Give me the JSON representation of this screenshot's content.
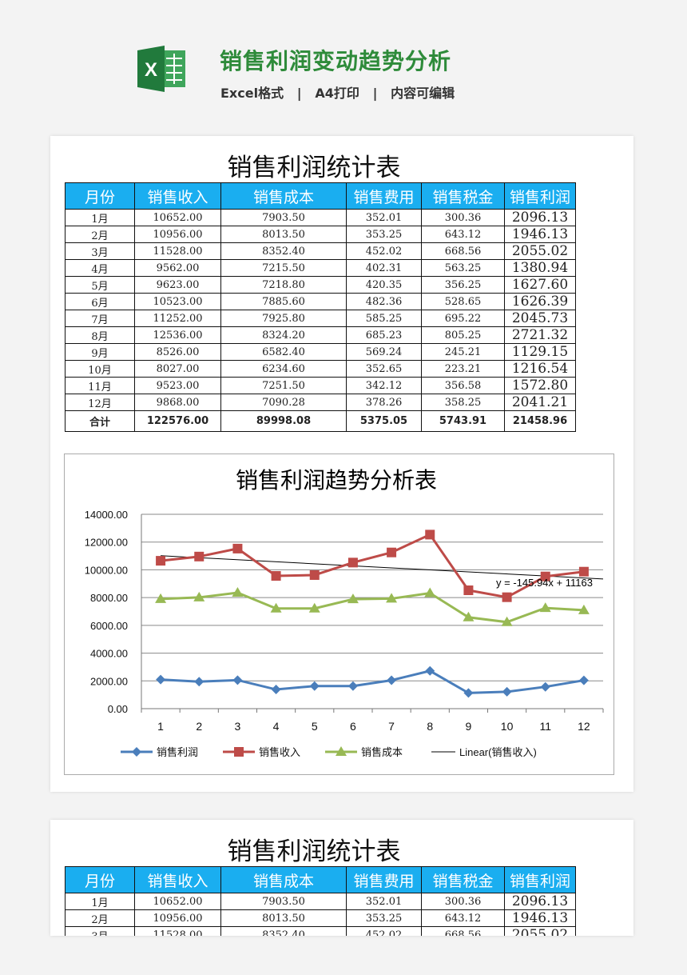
{
  "header": {
    "title": "销售利润变动趋势分析",
    "subtitle": "Excel格式   |   A4打印   |   内容可编辑",
    "logo_letter": "X"
  },
  "table": {
    "title": "销售利润统计表",
    "columns": [
      "月份",
      "销售收入",
      "销售成本",
      "销售费用",
      "销售税金",
      "销售利润"
    ],
    "rows": [
      [
        "1月",
        "10652.00",
        "7903.50",
        "352.01",
        "300.36",
        "2096.13"
      ],
      [
        "2月",
        "10956.00",
        "8013.50",
        "353.25",
        "643.12",
        "1946.13"
      ],
      [
        "3月",
        "11528.00",
        "8352.40",
        "452.02",
        "668.56",
        "2055.02"
      ],
      [
        "4月",
        "9562.00",
        "7215.50",
        "402.31",
        "563.25",
        "1380.94"
      ],
      [
        "5月",
        "9623.00",
        "7218.80",
        "420.35",
        "356.25",
        "1627.60"
      ],
      [
        "6月",
        "10523.00",
        "7885.60",
        "482.36",
        "528.65",
        "1626.39"
      ],
      [
        "7月",
        "11252.00",
        "7925.80",
        "585.25",
        "695.22",
        "2045.73"
      ],
      [
        "8月",
        "12536.00",
        "8324.20",
        "685.23",
        "805.25",
        "2721.32"
      ],
      [
        "9月",
        "8526.00",
        "6582.40",
        "569.24",
        "245.21",
        "1129.15"
      ],
      [
        "10月",
        "8027.00",
        "6234.60",
        "352.65",
        "223.21",
        "1216.54"
      ],
      [
        "11月",
        "9523.00",
        "7251.50",
        "342.12",
        "356.58",
        "1572.80"
      ],
      [
        "12月",
        "9868.00",
        "7090.28",
        "378.26",
        "358.25",
        "2041.21"
      ]
    ],
    "total": [
      "合计",
      "122576.00",
      "89998.08",
      "5375.05",
      "5743.91",
      "21458.96"
    ]
  },
  "chart_data": {
    "type": "line",
    "title": "销售利润趋势分析表",
    "categories": [
      "1",
      "2",
      "3",
      "4",
      "5",
      "6",
      "7",
      "8",
      "9",
      "10",
      "11",
      "12"
    ],
    "ylim": [
      0,
      14000
    ],
    "yticks": [
      "0.00",
      "2000.00",
      "4000.00",
      "6000.00",
      "8000.00",
      "10000.00",
      "12000.00",
      "14000.00"
    ],
    "grid": true,
    "legend": "bottom",
    "series": [
      {
        "name": "销售利润",
        "color": "#4a7ebb",
        "marker": "diamond",
        "values": [
          2096.13,
          1946.13,
          2055.02,
          1380.94,
          1627.6,
          1626.39,
          2045.73,
          2721.32,
          1129.15,
          1216.54,
          1572.8,
          2041.21
        ]
      },
      {
        "name": "销售收入",
        "color": "#be4b48",
        "marker": "square",
        "values": [
          10652,
          10956,
          11528,
          9562,
          9623,
          10523,
          11252,
          12536,
          8526,
          8027,
          9523,
          9868
        ]
      },
      {
        "name": "销售成本",
        "color": "#98b954",
        "marker": "triangle",
        "values": [
          7903.5,
          8013.5,
          8352.4,
          7215.5,
          7218.8,
          7885.6,
          7925.8,
          8324.2,
          6582.4,
          6234.6,
          7251.5,
          7090.28
        ]
      }
    ],
    "trendline": {
      "name": "Linear(销售收入)",
      "slope": -145.94,
      "intercept": 11163,
      "equation": "y =  -145.94x + 11163",
      "color": "#000000"
    }
  },
  "table2": {
    "title": "销售利润统计表"
  }
}
